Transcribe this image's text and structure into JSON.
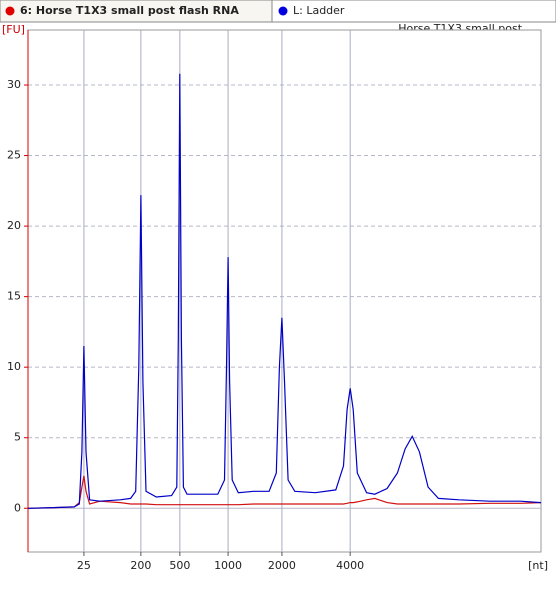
{
  "header": {
    "tabs": [
      "6: Horse T1X3 small post flash RNA",
      "L: Ladder"
    ]
  },
  "chart_data": {
    "type": "line",
    "title": "Horse T1X3 small post ...",
    "y_label": "[FU]",
    "x_label": "[nt]",
    "x": [
      0,
      5,
      9,
      10,
      10.5,
      10.9,
      11.3,
      12,
      14,
      18,
      20,
      21,
      21.6,
      22.0,
      22.4,
      23,
      25,
      28,
      29,
      29.3,
      29.6,
      29.9,
      30.3,
      31,
      34,
      37,
      38.3,
      38.7,
      39.0,
      39.3,
      39.8,
      41,
      44,
      47,
      48.4,
      49.0,
      49.5,
      50.0,
      50.7,
      52,
      56,
      60,
      61.5,
      62.2,
      62.8,
      63.4,
      64.2,
      66,
      67.6,
      70,
      72,
      73.5,
      74.9,
      76.3,
      78,
      80,
      84,
      90,
      96,
      100
    ],
    "series": [
      {
        "name": "L: Ladder",
        "color": "#0000c8",
        "values": [
          0,
          0.05,
          0.1,
          0.3,
          4,
          11.5,
          4,
          0.6,
          0.5,
          0.6,
          0.7,
          1.2,
          10,
          22.2,
          9,
          1.2,
          0.8,
          0.9,
          1.5,
          12,
          30.8,
          12,
          1.5,
          1.0,
          1.0,
          1.0,
          2,
          10,
          17.8,
          9,
          2,
          1.1,
          1.2,
          1.2,
          2.5,
          10,
          13.5,
          9,
          2,
          1.2,
          1.1,
          1.3,
          3,
          7,
          8.5,
          7,
          2.5,
          1.1,
          1.0,
          1.4,
          2.5,
          4.2,
          5.1,
          4.0,
          1.5,
          0.7,
          0.6,
          0.5,
          0.5,
          0.4
        ]
      },
      {
        "name": "6: Horse T1X3 small post flash RNA",
        "color": "#d01010",
        "values": [
          0,
          0.05,
          0.1,
          0.4,
          1.5,
          2.3,
          1.2,
          0.3,
          0.5,
          0.4,
          0.3,
          0.3,
          0.3,
          0.3,
          0.3,
          0.3,
          0.25,
          0.25,
          0.25,
          0.25,
          0.25,
          0.25,
          0.25,
          0.25,
          0.25,
          0.25,
          0.25,
          0.25,
          0.25,
          0.25,
          0.25,
          0.25,
          0.3,
          0.3,
          0.3,
          0.3,
          0.3,
          0.3,
          0.3,
          0.3,
          0.3,
          0.3,
          0.3,
          0.35,
          0.4,
          0.4,
          0.45,
          0.6,
          0.7,
          0.4,
          0.3,
          0.3,
          0.3,
          0.3,
          0.3,
          0.3,
          0.3,
          0.35,
          0.35,
          0.4
        ]
      }
    ],
    "xlim": [
      0,
      100
    ],
    "xticks": [
      {
        "value": 10.9,
        "label": "25"
      },
      {
        "value": 22.0,
        "label": "200"
      },
      {
        "value": 29.6,
        "label": "500"
      },
      {
        "value": 39.0,
        "label": "1000"
      },
      {
        "value": 49.5,
        "label": "2000"
      },
      {
        "value": 62.8,
        "label": "4000"
      }
    ],
    "ylim": [
      -3.1,
      33.9
    ],
    "yticks": [
      0,
      5,
      10,
      15,
      20,
      25,
      30
    ],
    "grid": true
  }
}
